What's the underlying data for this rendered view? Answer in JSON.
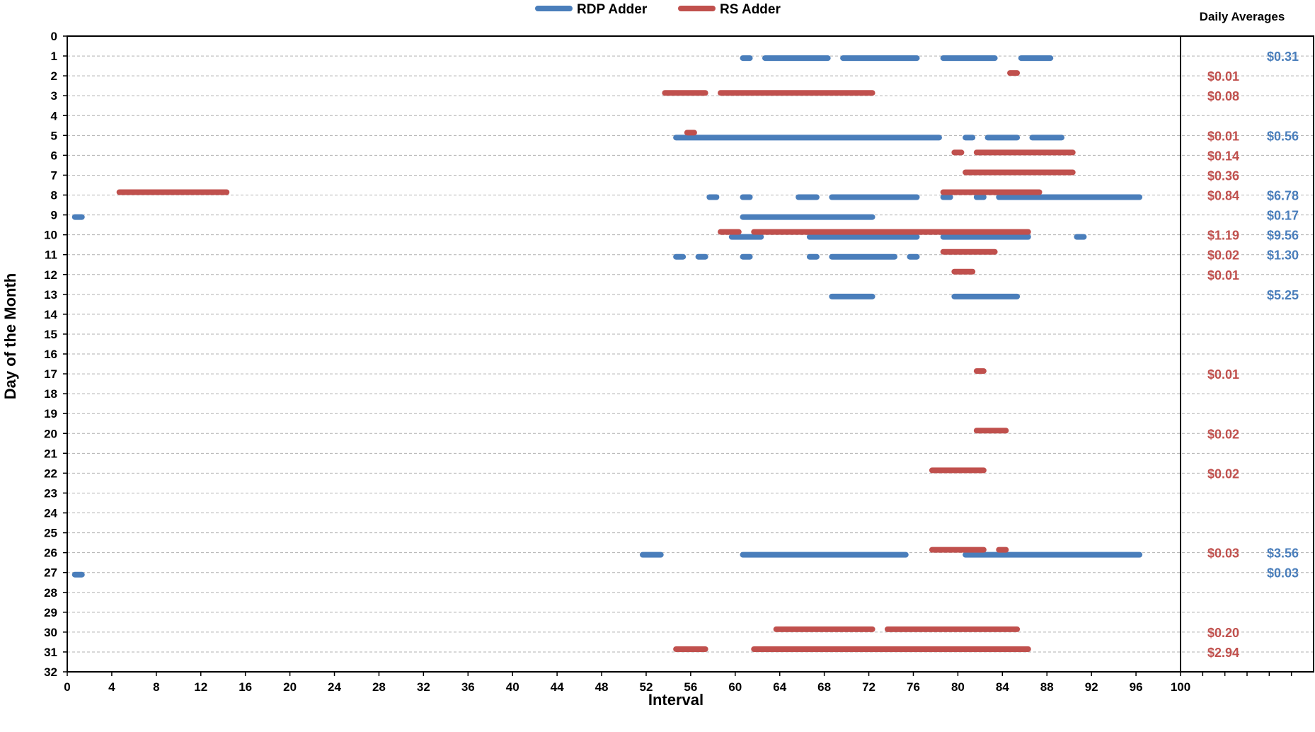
{
  "chart_data": {
    "type": "bar",
    "subtype": "interval-range-timeline",
    "xlabel": "Interval",
    "ylabel": "Day of the Month",
    "xlim": [
      0,
      100
    ],
    "ylim": [
      0,
      32
    ],
    "y_inverted": true,
    "grid": "horizontal dashed",
    "legend_position": "top-center",
    "x_ticks": [
      "0",
      "4",
      "8",
      "12",
      "16",
      "20",
      "24",
      "28",
      "32",
      "36",
      "40",
      "44",
      "48",
      "52",
      "56",
      "60",
      "64",
      "68",
      "72",
      "76",
      "80",
      "84",
      "88",
      "92",
      "96",
      "100"
    ],
    "y_ticks": [
      "0",
      "1",
      "2",
      "3",
      "4",
      "5",
      "6",
      "7",
      "8",
      "9",
      "10",
      "11",
      "12",
      "13",
      "14",
      "15",
      "16",
      "17",
      "18",
      "19",
      "20",
      "21",
      "22",
      "23",
      "24",
      "25",
      "26",
      "27",
      "28",
      "29",
      "30",
      "31",
      "32"
    ],
    "series": [
      {
        "name": "RDP Adder",
        "color": "#4a7ebb",
        "ranges": [
          {
            "day": 1,
            "start": 61,
            "end": 61
          },
          {
            "day": 1,
            "start": 63,
            "end": 68
          },
          {
            "day": 1,
            "start": 70,
            "end": 76
          },
          {
            "day": 1,
            "start": 79,
            "end": 83
          },
          {
            "day": 1,
            "start": 86,
            "end": 88
          },
          {
            "day": 5,
            "start": 55,
            "end": 78
          },
          {
            "day": 5,
            "start": 81,
            "end": 81
          },
          {
            "day": 5,
            "start": 83,
            "end": 85
          },
          {
            "day": 5,
            "start": 87,
            "end": 89
          },
          {
            "day": 8,
            "start": 58,
            "end": 58
          },
          {
            "day": 8,
            "start": 61,
            "end": 61
          },
          {
            "day": 8,
            "start": 66,
            "end": 67
          },
          {
            "day": 8,
            "start": 69,
            "end": 76
          },
          {
            "day": 8,
            "start": 79,
            "end": 79
          },
          {
            "day": 8,
            "start": 82,
            "end": 82
          },
          {
            "day": 8,
            "start": 84,
            "end": 96
          },
          {
            "day": 9,
            "start": 1,
            "end": 1
          },
          {
            "day": 9,
            "start": 61,
            "end": 72
          },
          {
            "day": 10,
            "start": 60,
            "end": 62
          },
          {
            "day": 10,
            "start": 67,
            "end": 76
          },
          {
            "day": 10,
            "start": 79,
            "end": 86
          },
          {
            "day": 10,
            "start": 91,
            "end": 91
          },
          {
            "day": 11,
            "start": 55,
            "end": 55
          },
          {
            "day": 11,
            "start": 57,
            "end": 57
          },
          {
            "day": 11,
            "start": 61,
            "end": 61
          },
          {
            "day": 11,
            "start": 67,
            "end": 67
          },
          {
            "day": 11,
            "start": 69,
            "end": 74
          },
          {
            "day": 11,
            "start": 76,
            "end": 76
          },
          {
            "day": 13,
            "start": 69,
            "end": 72
          },
          {
            "day": 13,
            "start": 80,
            "end": 85
          },
          {
            "day": 26,
            "start": 52,
            "end": 53
          },
          {
            "day": 26,
            "start": 61,
            "end": 75
          },
          {
            "day": 26,
            "start": 81,
            "end": 96
          },
          {
            "day": 27,
            "start": 1,
            "end": 1
          }
        ]
      },
      {
        "name": "RS Adder",
        "color": "#c0504d",
        "ranges": [
          {
            "day": 2,
            "start": 85,
            "end": 85
          },
          {
            "day": 3,
            "start": 54,
            "end": 57
          },
          {
            "day": 3,
            "start": 59,
            "end": 72
          },
          {
            "day": 5,
            "start": 56,
            "end": 56
          },
          {
            "day": 6,
            "start": 80,
            "end": 80
          },
          {
            "day": 6,
            "start": 82,
            "end": 90
          },
          {
            "day": 7,
            "start": 81,
            "end": 90
          },
          {
            "day": 8,
            "start": 5,
            "end": 14
          },
          {
            "day": 8,
            "start": 79,
            "end": 87
          },
          {
            "day": 10,
            "start": 59,
            "end": 60
          },
          {
            "day": 10,
            "start": 62,
            "end": 86
          },
          {
            "day": 11,
            "start": 79,
            "end": 83
          },
          {
            "day": 12,
            "start": 80,
            "end": 81
          },
          {
            "day": 17,
            "start": 82,
            "end": 82
          },
          {
            "day": 20,
            "start": 82,
            "end": 84
          },
          {
            "day": 22,
            "start": 78,
            "end": 82
          },
          {
            "day": 26,
            "start": 78,
            "end": 82
          },
          {
            "day": 26,
            "start": 84,
            "end": 84
          },
          {
            "day": 30,
            "start": 64,
            "end": 72
          },
          {
            "day": 30,
            "start": 74,
            "end": 85
          },
          {
            "day": 31,
            "start": 55,
            "end": 57
          },
          {
            "day": 31,
            "start": 62,
            "end": 86
          }
        ]
      }
    ],
    "daily_averages_title": "Daily Averages",
    "daily_averages": [
      {
        "day": 1,
        "rs": "",
        "rdp": "$0.31"
      },
      {
        "day": 2,
        "rs": "$0.01",
        "rdp": ""
      },
      {
        "day": 3,
        "rs": "$0.08",
        "rdp": ""
      },
      {
        "day": 5,
        "rs": "$0.01",
        "rdp": "$0.56"
      },
      {
        "day": 6,
        "rs": "$0.14",
        "rdp": ""
      },
      {
        "day": 7,
        "rs": "$0.36",
        "rdp": ""
      },
      {
        "day": 8,
        "rs": "$0.84",
        "rdp": "$6.78"
      },
      {
        "day": 9,
        "rs": "",
        "rdp": "$0.17"
      },
      {
        "day": 10,
        "rs": "$1.19",
        "rdp": "$9.56"
      },
      {
        "day": 11,
        "rs": "$0.02",
        "rdp": "$1.30"
      },
      {
        "day": 12,
        "rs": "$0.01",
        "rdp": ""
      },
      {
        "day": 13,
        "rs": "",
        "rdp": "$5.25"
      },
      {
        "day": 17,
        "rs": "$0.01",
        "rdp": ""
      },
      {
        "day": 20,
        "rs": "$0.02",
        "rdp": ""
      },
      {
        "day": 22,
        "rs": "$0.02",
        "rdp": ""
      },
      {
        "day": 26,
        "rs": "$0.03",
        "rdp": "$3.56"
      },
      {
        "day": 27,
        "rs": "",
        "rdp": "$0.03"
      },
      {
        "day": 30,
        "rs": "$0.20",
        "rdp": ""
      },
      {
        "day": 31,
        "rs": "$2.94",
        "rdp": ""
      }
    ]
  }
}
